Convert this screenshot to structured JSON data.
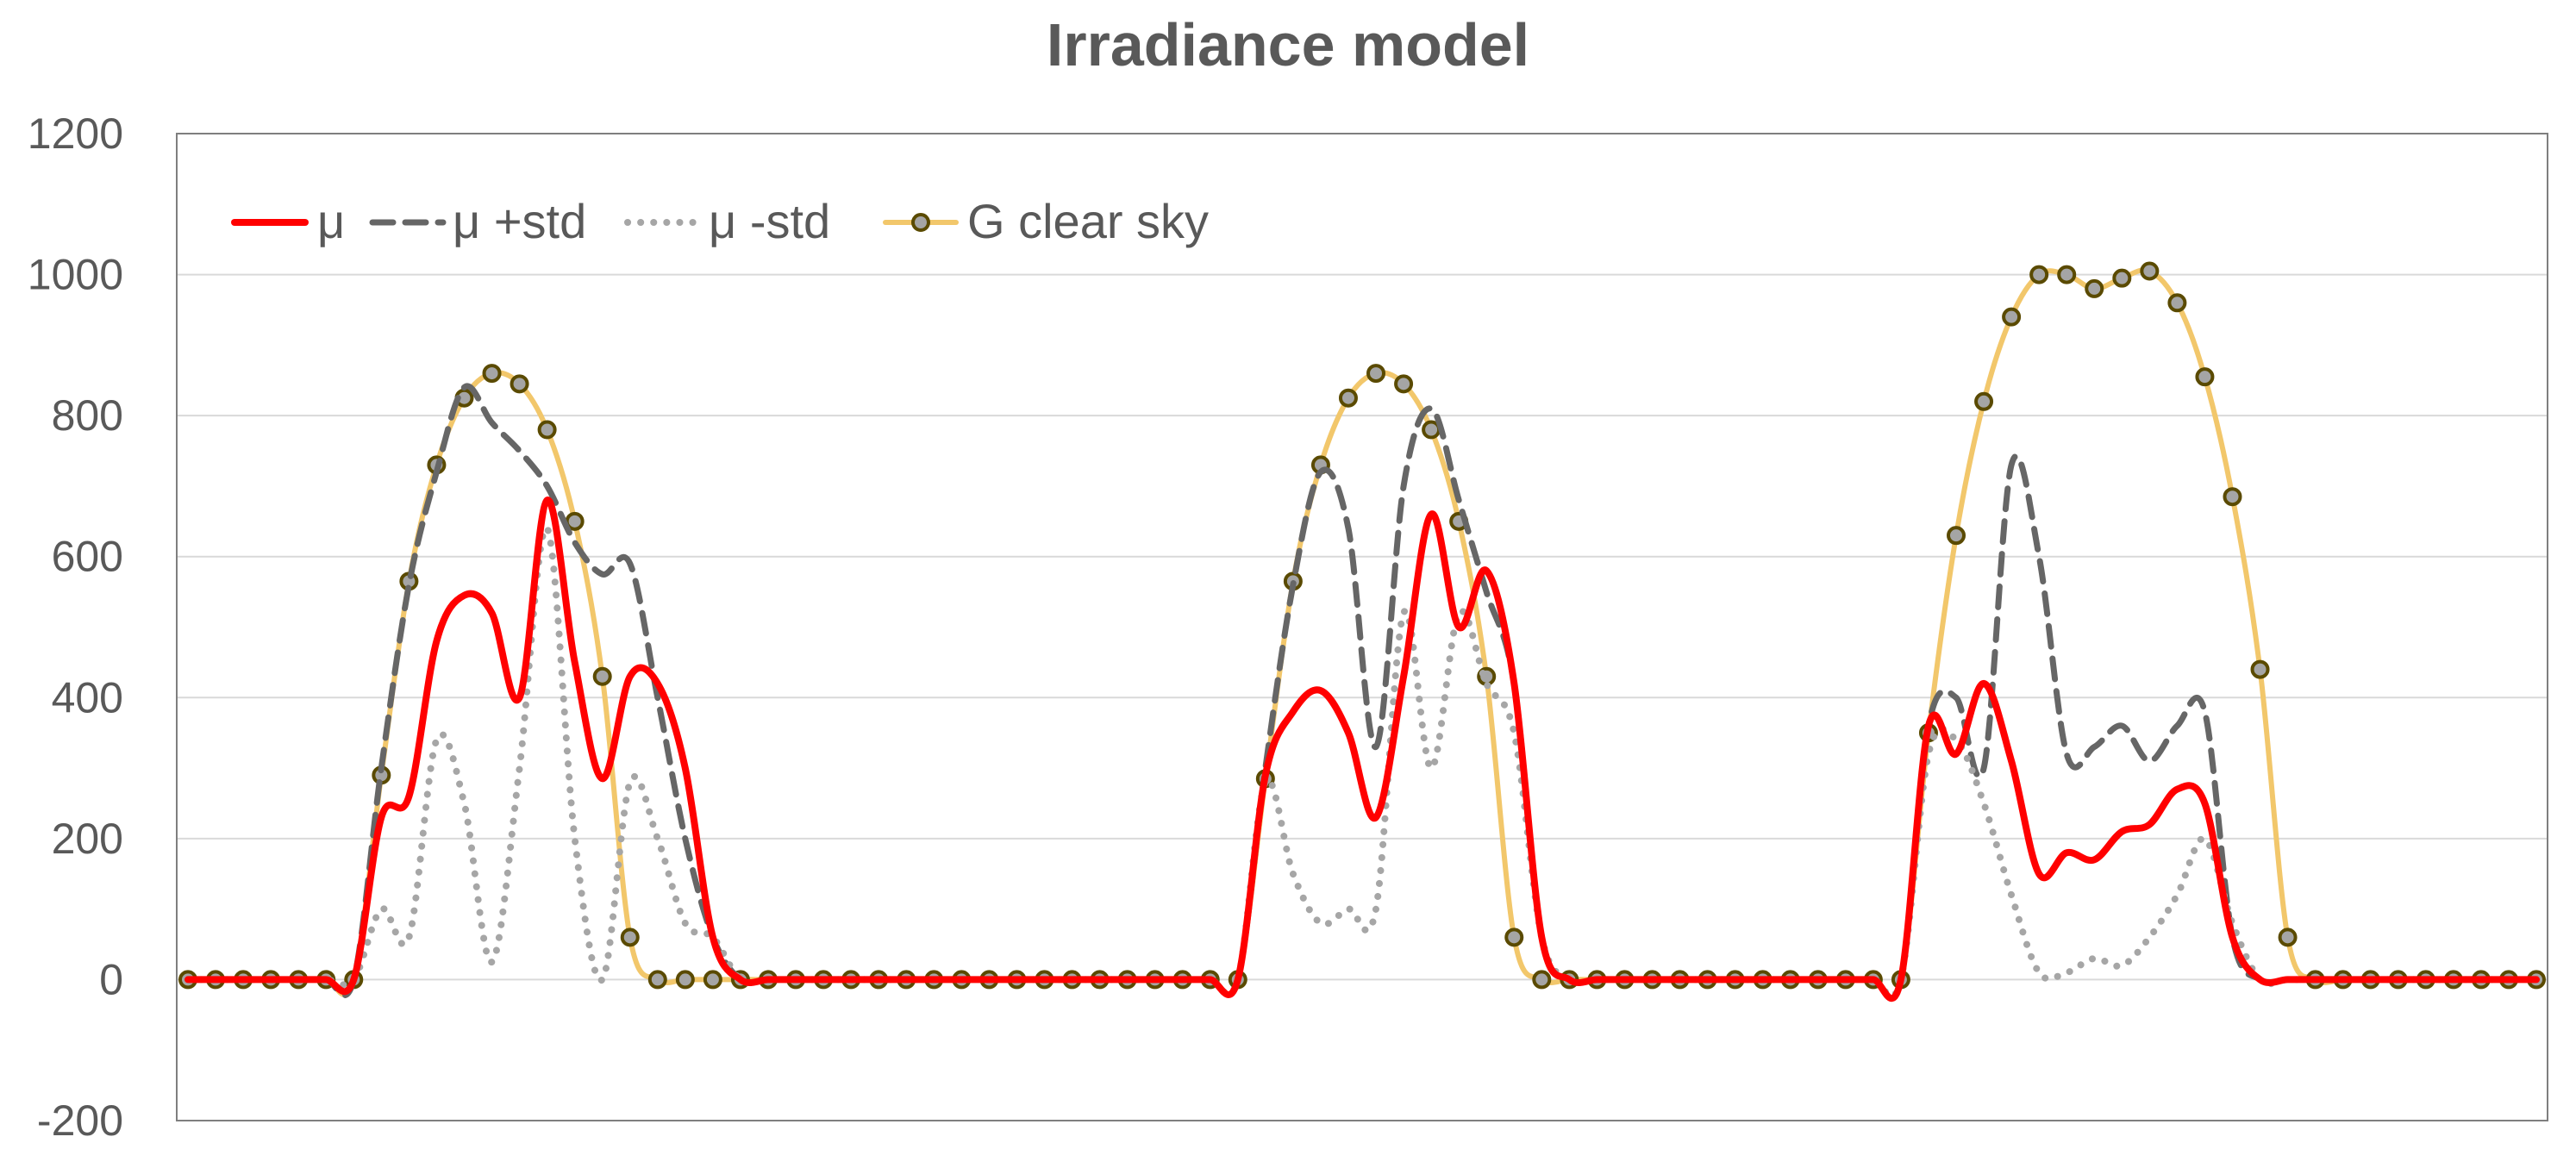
{
  "chart_data": {
    "type": "line",
    "title": "Irradiance model",
    "xlabel": "",
    "ylabel": "",
    "ylim": [
      -200,
      1200
    ],
    "yticks": [
      -200,
      0,
      200,
      400,
      600,
      800,
      1000,
      1200
    ],
    "grid": true,
    "legend_position": "top-left",
    "x": [
      0,
      1,
      2,
      3,
      4,
      5,
      6,
      7,
      8,
      9,
      10,
      11,
      12,
      13,
      14,
      15,
      16,
      17,
      18,
      19,
      20,
      21,
      22,
      23,
      24,
      25,
      26,
      27,
      28,
      29,
      30,
      31,
      32,
      33,
      34,
      35,
      36,
      37,
      38,
      39,
      40,
      41,
      42,
      43,
      44,
      45,
      46,
      47,
      48,
      49,
      50,
      51,
      52,
      53,
      54,
      55,
      56,
      57,
      58,
      59,
      60,
      61,
      62,
      63,
      64,
      65,
      66,
      67,
      68,
      69,
      70,
      71,
      72,
      73,
      74,
      75,
      76,
      77,
      78,
      79,
      80,
      81,
      82,
      83,
      84,
      85
    ],
    "series": [
      {
        "name": "μ",
        "color": "#ff0000",
        "style": "solid",
        "values": [
          0,
          0,
          0,
          0,
          0,
          0,
          0,
          230,
          260,
          480,
          545,
          520,
          400,
          680,
          450,
          285,
          430,
          420,
          300,
          60,
          0,
          0,
          0,
          0,
          0,
          0,
          0,
          0,
          0,
          0,
          0,
          0,
          0,
          0,
          0,
          0,
          0,
          0,
          0,
          290,
          380,
          410,
          350,
          230,
          430,
          660,
          500,
          580,
          420,
          60,
          0,
          0,
          0,
          0,
          0,
          0,
          0,
          0,
          0,
          0,
          0,
          0,
          0,
          360,
          320,
          420,
          310,
          150,
          180,
          170,
          210,
          220,
          270,
          250,
          60,
          0,
          0,
          0,
          0,
          0,
          0,
          0,
          0,
          0,
          0,
          0
        ]
      },
      {
        "name": "μ +std",
        "color": "#666666",
        "style": "dashed",
        "values": [
          0,
          0,
          0,
          0,
          0,
          0,
          0,
          300,
          560,
          720,
          840,
          790,
          750,
          700,
          620,
          575,
          590,
          400,
          200,
          60,
          0,
          0,
          0,
          0,
          0,
          0,
          0,
          0,
          0,
          0,
          0,
          0,
          0,
          0,
          0,
          0,
          0,
          0,
          0,
          300,
          560,
          720,
          640,
          330,
          700,
          810,
          680,
          550,
          420,
          60,
          0,
          0,
          0,
          0,
          0,
          0,
          0,
          0,
          0,
          0,
          0,
          0,
          0,
          360,
          400,
          300,
          730,
          600,
          320,
          330,
          360,
          310,
          360,
          380,
          60,
          0,
          0,
          0,
          0,
          0,
          0,
          0,
          0,
          0,
          0,
          0
        ]
      },
      {
        "name": "μ -std",
        "color": "#a6a6a6",
        "style": "dotted",
        "values": [
          0,
          0,
          0,
          0,
          0,
          0,
          0,
          100,
          60,
          340,
          250,
          25,
          300,
          640,
          200,
          0,
          280,
          200,
          80,
          60,
          0,
          0,
          0,
          0,
          0,
          0,
          0,
          0,
          0,
          0,
          0,
          0,
          0,
          0,
          0,
          0,
          0,
          0,
          0,
          280,
          150,
          80,
          100,
          100,
          520,
          300,
          520,
          420,
          350,
          60,
          0,
          0,
          0,
          0,
          0,
          0,
          0,
          0,
          0,
          0,
          0,
          0,
          0,
          320,
          340,
          250,
          120,
          10,
          10,
          30,
          20,
          60,
          120,
          200,
          80,
          0,
          0,
          0,
          0,
          0,
          0,
          0,
          0,
          0,
          0,
          0
        ]
      },
      {
        "name": "G clear sky",
        "color": "#f2c76b",
        "style": "solid-markers",
        "values": [
          0,
          0,
          0,
          0,
          0,
          0,
          0,
          290,
          565,
          730,
          825,
          860,
          845,
          780,
          650,
          430,
          60,
          0,
          0,
          0,
          0,
          0,
          0,
          0,
          0,
          0,
          0,
          0,
          0,
          0,
          0,
          0,
          0,
          0,
          0,
          0,
          0,
          0,
          0,
          285,
          565,
          730,
          825,
          860,
          845,
          780,
          650,
          430,
          60,
          0,
          0,
          0,
          0,
          0,
          0,
          0,
          0,
          0,
          0,
          0,
          0,
          0,
          0,
          350,
          630,
          820,
          940,
          1000,
          1000,
          980,
          995,
          1005,
          960,
          855,
          685,
          440,
          60,
          0,
          0,
          0,
          0,
          0,
          0,
          0,
          0,
          0
        ]
      }
    ]
  }
}
